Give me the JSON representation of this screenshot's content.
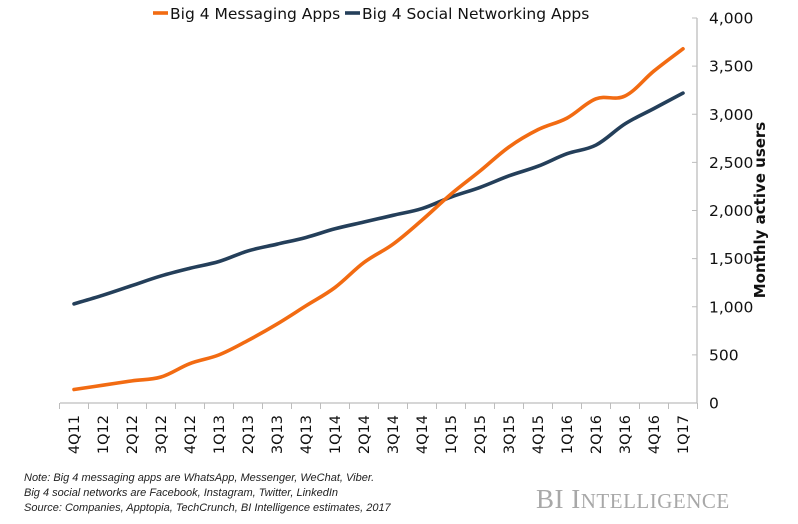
{
  "chart_data": {
    "type": "line",
    "title": "",
    "xlabel": "",
    "ylabel": "Monthly active users",
    "y_axis_side": "right",
    "ylim": [
      0,
      4000
    ],
    "yticks": [
      0,
      500,
      1000,
      1500,
      2000,
      2500,
      3000,
      3500,
      4000
    ],
    "ytick_labels": [
      "0",
      "500",
      "1,000",
      "1,500",
      "2,000",
      "2,500",
      "3,000",
      "3,500",
      "4,000"
    ],
    "grid": false,
    "legend_position": "top",
    "categories": [
      "4Q11",
      "1Q12",
      "2Q12",
      "3Q12",
      "4Q12",
      "1Q13",
      "2Q13",
      "3Q13",
      "4Q13",
      "1Q14",
      "2Q14",
      "3Q14",
      "4Q14",
      "1Q15",
      "2Q15",
      "3Q15",
      "4Q15",
      "1Q16",
      "2Q16",
      "3Q16",
      "4Q16",
      "1Q17"
    ],
    "series": [
      {
        "name": "Big 4 Messaging Apps",
        "color": "#F26B12",
        "values": [
          140,
          185,
          230,
          270,
          410,
          500,
          650,
          820,
          1010,
          1200,
          1460,
          1650,
          1900,
          2170,
          2410,
          2660,
          2840,
          2960,
          3160,
          3190,
          3450,
          3680
        ]
      },
      {
        "name": "Big 4 Social Networking Apps",
        "color": "#243F5A",
        "values": [
          1030,
          1120,
          1220,
          1320,
          1400,
          1470,
          1580,
          1650,
          1720,
          1810,
          1880,
          1950,
          2020,
          2140,
          2240,
          2360,
          2460,
          2590,
          2680,
          2900,
          3060,
          3220
        ]
      }
    ]
  },
  "notes": [
    "Note: Big 4 messaging apps are WhatsApp, Messenger, WeChat, Viber.",
    "Big 4 social networks are Facebook, Instagram, Twitter, LinkedIn",
    "Source: Companies,  Apptopia, TechCrunch,  BI Intelligence estimates, 2017"
  ],
  "brand": {
    "part1": "BI I",
    "part2": "NTELLIGENCE"
  }
}
